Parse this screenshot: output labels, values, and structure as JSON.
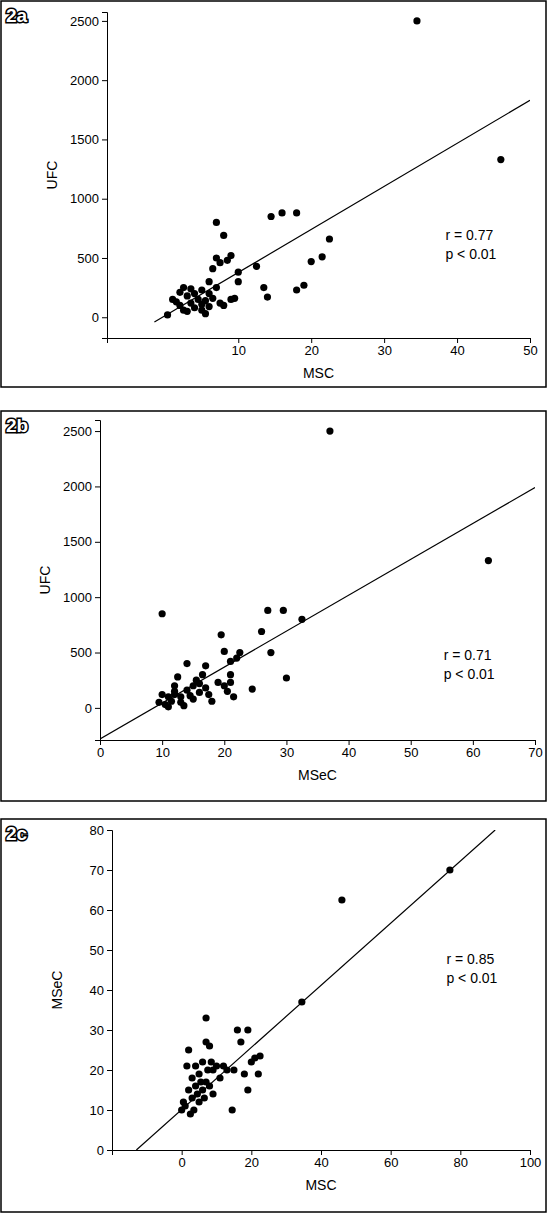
{
  "chart_data": [
    {
      "type": "scatter",
      "title": "2a",
      "x_label": "MSC",
      "y_label": "UFC",
      "xlim": [
        -8,
        50
      ],
      "ylim": [
        -175,
        2575
      ],
      "xticks": [
        10,
        20,
        30,
        40,
        50
      ],
      "yticks": [
        0,
        500,
        1000,
        1500,
        2000,
        2500
      ],
      "annotations": [
        "r = 0.77",
        "p < 0.01"
      ],
      "series": [
        {
          "type": "scatter",
          "color": "#000000",
          "marker": "circle",
          "x": [
            34.5,
            46,
            0.3,
            1,
            1.5,
            2,
            2,
            2.5,
            2.5,
            3,
            3,
            3.5,
            3.5,
            4,
            4,
            4.5,
            5,
            5,
            5,
            5.5,
            5.5,
            6,
            6,
            6,
            6.5,
            6.5,
            7,
            7,
            7,
            7.5,
            7.5,
            8,
            8,
            8.5,
            9,
            9,
            9.5,
            10,
            10,
            12.5,
            13.5,
            14,
            14.5,
            16,
            18,
            18,
            19,
            20,
            21.5,
            22.5
          ],
          "y": [
            2500,
            1330,
            20,
            150,
            130,
            210,
            100,
            250,
            60,
            180,
            50,
            240,
            120,
            80,
            200,
            150,
            110,
            60,
            230,
            140,
            30,
            200,
            90,
            300,
            160,
            410,
            800,
            500,
            250,
            120,
            460,
            100,
            690,
            480,
            150,
            520,
            160,
            300,
            380,
            430,
            250,
            170,
            850,
            880,
            880,
            230,
            270,
            470,
            510,
            660
          ]
        },
        {
          "type": "line",
          "color": "#000000",
          "line_style": "solid",
          "x": [
            -1.5,
            50
          ],
          "y": [
            -40,
            1830
          ]
        }
      ]
    },
    {
      "type": "scatter",
      "title": "2b",
      "x_label": "MSeC",
      "y_label": "UFC",
      "xlim": [
        0,
        70
      ],
      "ylim": [
        -290,
        2600
      ],
      "xticks": [
        0,
        10,
        20,
        30,
        40,
        50,
        60,
        70
      ],
      "yticks": [
        0,
        500,
        1000,
        1500,
        2000,
        2500
      ],
      "annotations": [
        "r = 0.71",
        "p < 0.01"
      ],
      "series": [
        {
          "type": "scatter",
          "color": "#000000",
          "marker": "circle",
          "x": [
            10,
            37,
            62.5,
            9.5,
            10,
            10.5,
            11,
            11,
            11.5,
            12,
            12,
            12.5,
            13,
            13,
            13.5,
            14,
            14,
            14.5,
            15,
            15,
            15.5,
            16,
            16.5,
            17,
            17,
            17.5,
            18,
            19,
            19.5,
            20,
            20,
            20.5,
            21,
            21,
            21.5,
            22,
            22.5,
            24.5,
            26,
            27,
            27.5,
            29.5,
            30,
            32.5,
            21,
            12,
            16
          ],
          "y": [
            850,
            2500,
            1330,
            50,
            120,
            30,
            100,
            10,
            60,
            150,
            200,
            280,
            100,
            50,
            20,
            160,
            400,
            110,
            80,
            200,
            250,
            140,
            300,
            180,
            380,
            120,
            60,
            230,
            660,
            510,
            200,
            150,
            420,
            230,
            100,
            450,
            500,
            170,
            690,
            880,
            500,
            880,
            270,
            800,
            300,
            120,
            220
          ]
        },
        {
          "type": "line",
          "color": "#000000",
          "line_style": "solid",
          "x": [
            0,
            70
          ],
          "y": [
            -280,
            1990
          ]
        }
      ]
    },
    {
      "type": "scatter",
      "title": "2c",
      "x_label": "MSC",
      "y_label": "MSeC",
      "xlim": [
        -20,
        100
      ],
      "ylim": [
        0,
        80
      ],
      "xticks": [
        0,
        20,
        40,
        60,
        80,
        100
      ],
      "yticks": [
        0,
        10,
        20,
        30,
        40,
        50,
        60,
        70,
        80
      ],
      "annotations": [
        "r = 0.85",
        "p < 0.01"
      ],
      "series": [
        {
          "type": "scatter",
          "color": "#000000",
          "marker": "circle",
          "x": [
            77,
            46,
            34.5,
            0,
            0.5,
            1,
            1.5,
            2,
            2,
            2.5,
            3,
            3,
            3.5,
            4,
            4,
            4.5,
            5,
            5,
            5.5,
            6,
            6,
            6.5,
            7,
            7,
            7,
            7.5,
            8,
            8,
            8.5,
            9,
            9,
            10,
            11,
            12,
            13,
            14.5,
            15,
            16,
            17,
            18,
            19,
            19,
            20,
            21,
            22,
            22.5
          ],
          "y": [
            70,
            62.5,
            37,
            10,
            12,
            11,
            21,
            25,
            15,
            9,
            13,
            18,
            10,
            21,
            16,
            14,
            19,
            12,
            17,
            15,
            22,
            13,
            33,
            27,
            17,
            20,
            16,
            26,
            22,
            14,
            20,
            21,
            18,
            21,
            20,
            10,
            20,
            30,
            27,
            19,
            30,
            15,
            22,
            23,
            19,
            23.5
          ]
        },
        {
          "type": "line",
          "color": "#000000",
          "line_style": "solid",
          "x": [
            -13,
            90
          ],
          "y": [
            0,
            80
          ]
        }
      ]
    }
  ]
}
